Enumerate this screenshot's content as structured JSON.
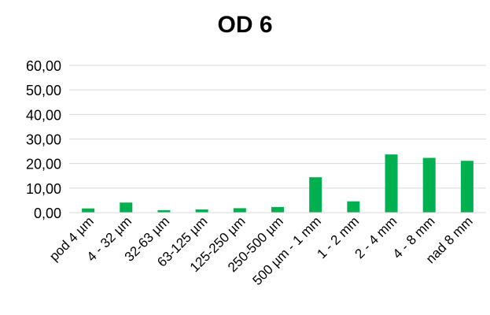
{
  "chart_data": {
    "type": "bar",
    "title": "OD 6",
    "categories": [
      "pod 4 µm",
      "4 - 32 µm",
      "32-63 µm",
      "63-125 µm",
      "125-250 µm",
      "250-500 µm",
      "500 µm - 1 mm",
      "1 - 2 mm",
      "2 - 4 mm",
      "4 - 8 mm",
      "nad 8 mm"
    ],
    "values": [
      1.7,
      4.1,
      1.0,
      1.3,
      1.8,
      2.3,
      14.4,
      4.6,
      23.7,
      22.3,
      21.1
    ],
    "ylim": [
      0,
      60
    ],
    "yticks": [
      "0,00",
      "10,00",
      "20,00",
      "30,00",
      "40,00",
      "50,00",
      "60,00"
    ],
    "xlabel": "",
    "ylabel": "",
    "grid": true,
    "bar_color": "#00b050",
    "grid_color": "#d9d9d9"
  }
}
